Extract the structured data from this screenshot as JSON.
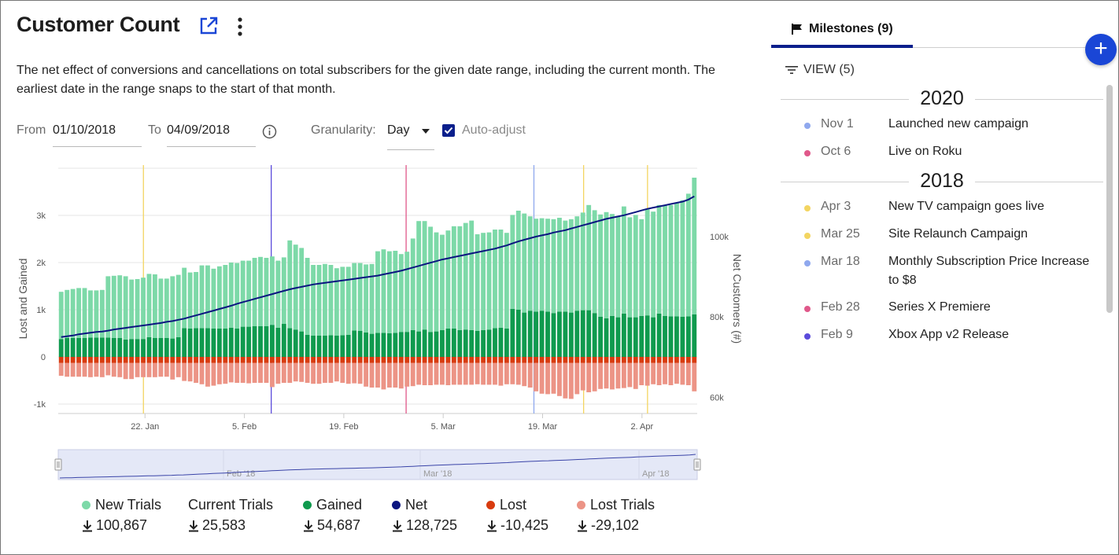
{
  "header": {
    "title": "Customer Count",
    "description": "The net effect of conversions and cancellations on total subscribers for the given date range, including the current month. The earliest date in the range snaps to the start of that month."
  },
  "controls": {
    "from_label": "From",
    "from_value": "01/10/2018",
    "to_label": "To",
    "to_value": "04/09/2018",
    "granularity_label": "Granularity:",
    "granularity_value": "Day",
    "auto_adjust_label": "Auto-adjust",
    "auto_adjust_checked": true
  },
  "legend": [
    {
      "name": "New Trials",
      "total": "100,867",
      "color": "#7dd9a8",
      "dot": true
    },
    {
      "name": "Current Trials",
      "total": "25,583",
      "color": "",
      "dot": false
    },
    {
      "name": "Gained",
      "total": "54,687",
      "color": "#0f9a4e",
      "dot": true
    },
    {
      "name": "Net",
      "total": "128,725",
      "color": "#0b1580",
      "dot": true
    },
    {
      "name": "Lost",
      "total": "-10,425",
      "color": "#d83b0f",
      "dot": true
    },
    {
      "name": "Lost Trials",
      "total": "-29,102",
      "color": "#ec9486",
      "dot": true
    }
  ],
  "milestones_panel": {
    "tab_label": "Milestones (9)",
    "view_label": "VIEW (5)",
    "groups": [
      {
        "year": "2020",
        "items": [
          {
            "date": "Nov 1",
            "text": "Launched new campaign",
            "color": "#8fa8ee"
          },
          {
            "date": "Oct 6",
            "text": "Live on Roku",
            "color": "#e0588a"
          }
        ]
      },
      {
        "year": "2018",
        "items": [
          {
            "date": "Apr 3",
            "text": "New TV campaign goes live",
            "color": "#f3d561"
          },
          {
            "date": "Mar 25",
            "text": "Site Relaunch Campaign",
            "color": "#f3d561"
          },
          {
            "date": "Mar 18",
            "text": "Monthly Subscription Price Increase to $8",
            "color": "#8fa8ee"
          },
          {
            "date": "Feb 28",
            "text": "Series X Premiere",
            "color": "#e0588a"
          },
          {
            "date": "Feb 9",
            "text": "Xbox App v2 Release",
            "color": "#5b4bdb"
          }
        ]
      }
    ]
  },
  "chart_data": {
    "type": "bar",
    "title": "",
    "ylabel": "Lost and Gained",
    "y2label": "Net Customers (#)",
    "ylim": [
      -1200,
      4000
    ],
    "yticks": [
      -1000,
      0,
      1000,
      2000,
      3000
    ],
    "ytick_labels": [
      "-1k",
      "0",
      "1k",
      "2k",
      "3k"
    ],
    "y2lim": [
      56000,
      117000
    ],
    "y2ticks": [
      60000,
      80000,
      100000
    ],
    "y2tick_labels": [
      "60k",
      "80k",
      "100k"
    ],
    "xlim": [
      "2018-01-10",
      "2018-04-09"
    ],
    "xticks": [
      "2018-01-22",
      "2018-02-05",
      "2018-02-19",
      "2018-03-05",
      "2018-03-19",
      "2018-04-02"
    ],
    "xtick_labels": [
      "22. Jan",
      "5. Feb",
      "19. Feb",
      "5. Mar",
      "19. Mar",
      "2. Apr"
    ],
    "start_date": "2018-01-10",
    "new_trials": [
      1000,
      1020,
      1040,
      1060,
      1060,
      1000,
      1000,
      1010,
      1300,
      1320,
      1330,
      1340,
      1260,
      1270,
      1300,
      1340,
      1350,
      1260,
      1260,
      1320,
      1320,
      1280,
      1190,
      1190,
      1330,
      1330,
      1270,
      1320,
      1350,
      1380,
      1390,
      1400,
      1400,
      1450,
      1470,
      1450,
      1450,
      1420,
      1410,
      1860,
      1800,
      1770,
      1630,
      1500,
      1500,
      1520,
      1490,
      1430,
      1450,
      1440,
      1430,
      1440,
      1440,
      1480,
      1730,
      1770,
      1740,
      1740,
      1650,
      1700,
      1940,
      2340,
      2300,
      2230,
      2100,
      2020,
      2080,
      2170,
      2200,
      2260,
      2320,
      2050,
      2060,
      2060,
      2090,
      2080,
      2030,
      1990,
      2100,
      2100,
      2000,
      1970,
      1960,
      1970,
      1990,
      1990,
      1930,
      1980,
      2000,
      2070,
      2230,
      2180,
      2170,
      2250,
      2160,
      2140,
      2270,
      2120,
      2170,
      2050,
      2250,
      2240,
      2300,
      2350,
      2360,
      2400,
      2470,
      2600,
      2900
    ],
    "gained": [
      380,
      400,
      400,
      400,
      400,
      410,
      410,
      410,
      410,
      400,
      400,
      370,
      380,
      380,
      380,
      420,
      400,
      400,
      400,
      390,
      420,
      610,
      600,
      610,
      610,
      610,
      600,
      600,
      600,
      620,
      600,
      640,
      640,
      650,
      650,
      650,
      680,
      620,
      700,
      610,
      580,
      540,
      470,
      450,
      450,
      450,
      460,
      450,
      460,
      470,
      560,
      550,
      520,
      490,
      510,
      510,
      500,
      510,
      530,
      530,
      570,
      540,
      580,
      530,
      540,
      570,
      600,
      600,
      570,
      580,
      570,
      550,
      570,
      580,
      610,
      620,
      600,
      1020,
      1000,
      940,
      980,
      960,
      980,
      960,
      930,
      960,
      960,
      940,
      980,
      990,
      990,
      930,
      850,
      820,
      870,
      840,
      920,
      840,
      840,
      870,
      880,
      840,
      920,
      870,
      860,
      860,
      850,
      860,
      900
    ],
    "lost": [
      -130,
      -130,
      -130,
      -130,
      -130,
      -130,
      -130,
      -130,
      -130,
      -130,
      -130,
      -130,
      -130,
      -130,
      -130,
      -130,
      -130,
      -130,
      -130,
      -130,
      -130,
      -130,
      -130,
      -130,
      -130,
      -130,
      -130,
      -130,
      -130,
      -130,
      -130,
      -130,
      -130,
      -130,
      -130,
      -130,
      -130,
      -130,
      -130,
      -130,
      -130,
      -130,
      -130,
      -130,
      -130,
      -130,
      -130,
      -130,
      -130,
      -130,
      -130,
      -130,
      -130,
      -130,
      -130,
      -130,
      -130,
      -130,
      -130,
      -130,
      -130,
      -130,
      -130,
      -130,
      -130,
      -130,
      -130,
      -130,
      -130,
      -130,
      -130,
      -130,
      -130,
      -130,
      -130,
      -130,
      -130,
      -130,
      -130,
      -130,
      -130,
      -130,
      -130,
      -130,
      -130,
      -130,
      -130,
      -130,
      -130,
      -130,
      -130,
      -130,
      -130,
      -130,
      -130,
      -130,
      -130,
      -130,
      -130,
      -130,
      -130,
      -130,
      -130,
      -130,
      -130,
      -130,
      -130,
      -130,
      -130
    ],
    "lost_trials": [
      -270,
      -290,
      -290,
      -290,
      -290,
      -300,
      -290,
      -300,
      -260,
      -290,
      -300,
      -340,
      -340,
      -300,
      -300,
      -300,
      -300,
      -290,
      -290,
      -350,
      -300,
      -380,
      -390,
      -420,
      -450,
      -500,
      -480,
      -450,
      -440,
      -410,
      -420,
      -420,
      -430,
      -420,
      -420,
      -420,
      -510,
      -440,
      -420,
      -420,
      -390,
      -400,
      -420,
      -440,
      -440,
      -420,
      -420,
      -390,
      -420,
      -440,
      -430,
      -440,
      -500,
      -520,
      -520,
      -560,
      -520,
      -520,
      -540,
      -500,
      -490,
      -460,
      -470,
      -470,
      -460,
      -460,
      -470,
      -460,
      -460,
      -460,
      -460,
      -450,
      -460,
      -460,
      -460,
      -480,
      -450,
      -450,
      -460,
      -490,
      -520,
      -600,
      -650,
      -660,
      -650,
      -700,
      -750,
      -760,
      -660,
      -580,
      -620,
      -600,
      -550,
      -540,
      -560,
      -540,
      -530,
      -510,
      -550,
      -470,
      -480,
      -450,
      -470,
      -450,
      -470,
      -440,
      -460,
      -470,
      -600
    ],
    "net": [
      75000,
      75200,
      75400,
      75700,
      75900,
      76100,
      76300,
      76400,
      76600,
      76900,
      77100,
      77300,
      77500,
      77700,
      77900,
      78100,
      78300,
      78500,
      78800,
      79000,
      79300,
      79600,
      80000,
      80400,
      80800,
      81200,
      81600,
      82000,
      82400,
      82800,
      83300,
      83700,
      84100,
      84500,
      84900,
      85300,
      85700,
      86100,
      86500,
      86900,
      87200,
      87500,
      87800,
      88100,
      88300,
      88500,
      88700,
      88900,
      89100,
      89300,
      89500,
      89700,
      89900,
      90100,
      90300,
      90600,
      90900,
      91200,
      91500,
      91900,
      92300,
      92700,
      93100,
      93500,
      93900,
      94300,
      94600,
      94900,
      95200,
      95500,
      95800,
      96100,
      96400,
      96700,
      97000,
      97400,
      97800,
      98300,
      98800,
      99200,
      99600,
      100000,
      100300,
      100600,
      101000,
      101300,
      101600,
      102000,
      102400,
      102800,
      103200,
      103600,
      104000,
      104400,
      104700,
      105000,
      105300,
      105700,
      106100,
      106500,
      106900,
      107200,
      107500,
      107800,
      108100,
      108400,
      108700,
      109200,
      110000
    ],
    "milestone_lines": [
      {
        "date": "2018-01-22",
        "color": "#f3d561"
      },
      {
        "date": "2018-02-09",
        "color": "#5b4bdb"
      },
      {
        "date": "2018-02-28",
        "color": "#e0588a"
      },
      {
        "date": "2018-03-18",
        "color": "#8fa8ee"
      },
      {
        "date": "2018-03-25",
        "color": "#f3d561"
      },
      {
        "date": "2018-04-03",
        "color": "#f3d561"
      }
    ],
    "navigator_labels": [
      "Feb '18",
      "Mar '18",
      "Apr '18"
    ]
  }
}
